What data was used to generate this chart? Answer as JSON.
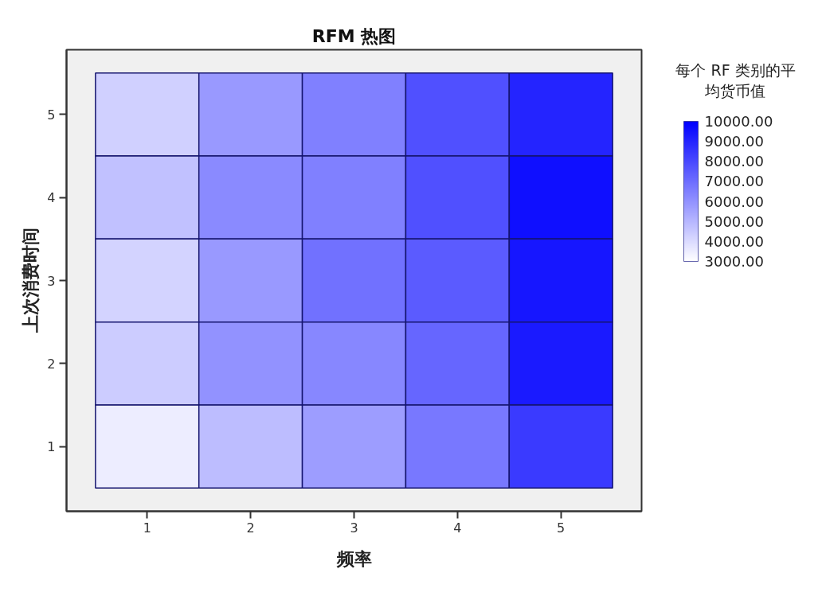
{
  "chart_data": {
    "type": "heatmap",
    "title": "RFM 热图",
    "xlabel": "频率",
    "ylabel": "上次消费时间",
    "clabel": "每个 RF 类别的平均货币值",
    "categories": [
      "1",
      "2",
      "3",
      "4",
      "5"
    ],
    "y_categories": [
      "5",
      "4",
      "3",
      "2",
      "1"
    ],
    "cells": [
      [
        4300,
        5800,
        6500,
        7800,
        9000
      ],
      [
        4700,
        6200,
        6500,
        7800,
        9600
      ],
      [
        4200,
        5800,
        6900,
        7500,
        9400
      ],
      [
        4400,
        6000,
        6300,
        7200,
        9300
      ],
      [
        3500,
        4800,
        5700,
        6700,
        8400
      ]
    ],
    "clim": [
      3000,
      10000
    ],
    "cticks": [
      {
        "value": 10000,
        "label": "10000.00"
      },
      {
        "value": 9000,
        "label": "9000.00"
      },
      {
        "value": 8000,
        "label": "8000.00"
      },
      {
        "value": 7000,
        "label": "7000.00"
      },
      {
        "value": 6000,
        "label": "6000.00"
      },
      {
        "value": 5000,
        "label": "5000.00"
      },
      {
        "value": 4000,
        "label": "4000.00"
      },
      {
        "value": 3000,
        "label": "3000.00"
      }
    ]
  }
}
